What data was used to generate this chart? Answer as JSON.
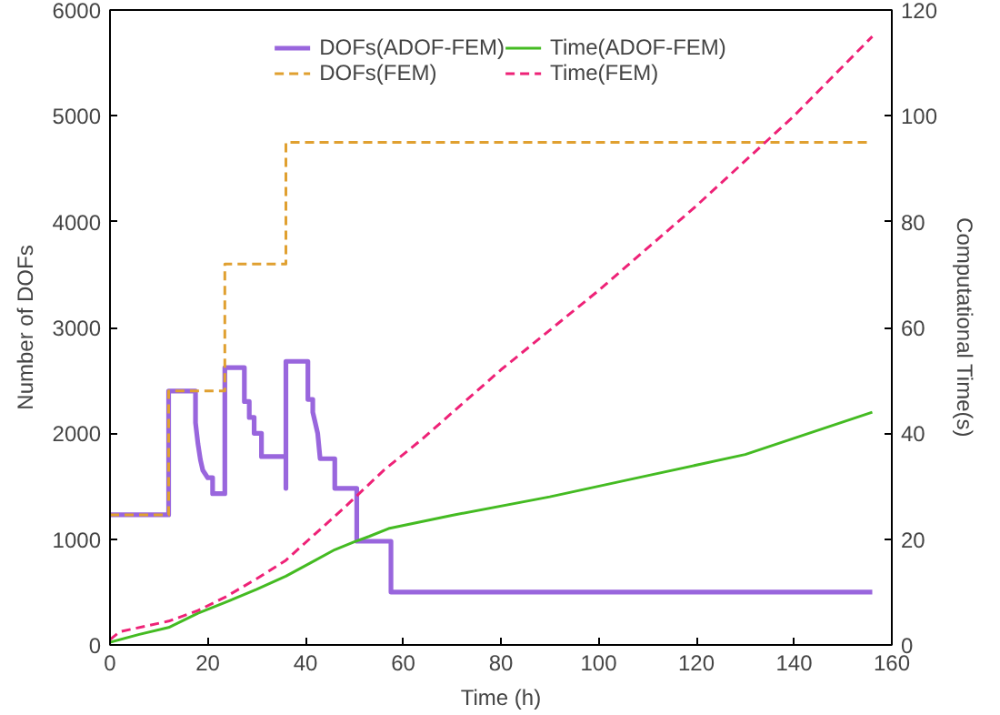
{
  "chart_data": {
    "type": "line",
    "xlabel": "Time (h)",
    "ylabel": "Number of DOFs",
    "y2label": "Computational Time(s)",
    "xlim": [
      0,
      160
    ],
    "xticks": [
      0,
      20,
      40,
      60,
      80,
      100,
      120,
      140,
      160
    ],
    "ylim": [
      0,
      6000
    ],
    "yticks": [
      0,
      1000,
      2000,
      3000,
      4000,
      5000,
      6000
    ],
    "y2lim": [
      0,
      120
    ],
    "y2ticks": [
      0,
      20,
      40,
      60,
      80,
      100,
      120
    ],
    "grid": false,
    "legend": "top",
    "line_style": "solid",
    "marker": "none",
    "series": [
      {
        "name": "DOFs(ADOF-FEM)",
        "color": "#9966dd",
        "x": [
          0,
          12,
          12,
          17.5,
          17.5,
          18,
          18.5,
          19,
          20,
          21,
          21,
          23.5,
          23.5,
          27.5,
          27.5,
          28.5,
          28.5,
          29.5,
          29.5,
          31,
          31,
          33,
          33,
          36,
          36,
          36,
          40.5,
          40.5,
          41.5,
          41.5,
          42,
          42.5,
          43,
          43,
          46,
          46,
          50.5,
          50.5,
          54,
          54,
          57.5,
          57.5,
          156
        ],
        "values": [
          1230,
          1230,
          2400,
          2400,
          2100,
          1900,
          1750,
          1650,
          1580,
          1580,
          1430,
          1430,
          2620,
          2620,
          2300,
          2300,
          2150,
          2150,
          2000,
          2000,
          1780,
          1780,
          1780,
          1780,
          1480,
          2680,
          2680,
          2320,
          2320,
          2200,
          2100,
          2000,
          1760,
          1760,
          1760,
          1480,
          1480,
          980,
          980,
          980,
          980,
          500,
          500
        ]
      },
      {
        "name": "DOFs(FEM)",
        "color": "#e0a030",
        "line_style": "dashed",
        "x": [
          0,
          12,
          12,
          23.5,
          23.5,
          36,
          36,
          156
        ],
        "values": [
          1230,
          1230,
          2400,
          2400,
          3600,
          3600,
          4750,
          4750
        ]
      },
      {
        "name": "Time(ADOF-FEM)",
        "color": "#44bb22",
        "axis": "y2",
        "x": [
          0,
          6,
          12,
          18,
          23.5,
          30,
          36,
          41,
          46,
          50,
          53,
          57,
          70,
          90,
          110,
          130,
          156
        ],
        "values": [
          0.5,
          2,
          3.3,
          6,
          8,
          10.5,
          13,
          15.5,
          18,
          19.5,
          20.5,
          22,
          24.5,
          28,
          32,
          36,
          44
        ]
      },
      {
        "name": "Time(FEM)",
        "color": "#ee2277",
        "axis": "y2",
        "line_style": "dashed",
        "x": [
          0,
          2,
          12,
          18,
          23.5,
          30,
          36,
          42,
          48,
          56,
          64,
          80,
          100,
          120,
          140,
          156
        ],
        "values": [
          1,
          2.5,
          4.5,
          6.5,
          9,
          12.5,
          16,
          21,
          26,
          33,
          39,
          52,
          67,
          83,
          100,
          115
        ]
      }
    ]
  }
}
